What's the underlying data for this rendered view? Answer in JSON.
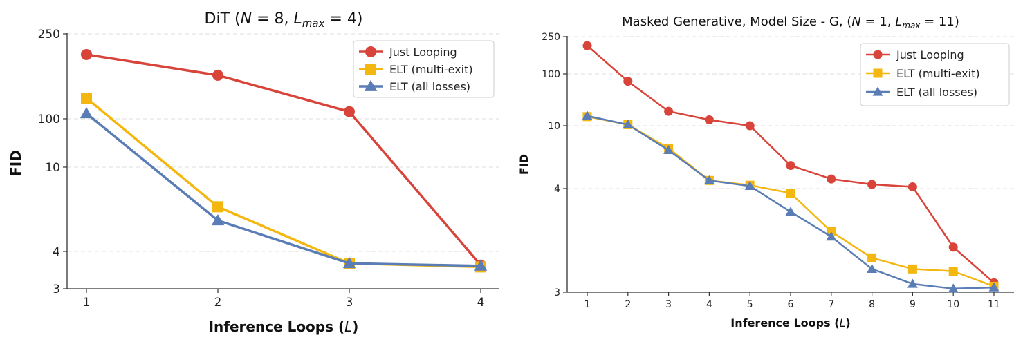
{
  "colors": {
    "just_looping": "#d9443a",
    "elt_multi_exit": "#f3b70f",
    "elt_all_losses": "#5a7db5",
    "grid": "#dddddd",
    "axis": "#333333"
  },
  "chart_data": [
    {
      "type": "line",
      "title_parts": {
        "prefix": "DiT (",
        "N": "N",
        "eq1": " = 8, ",
        "L": "L",
        "sub": "max",
        "eq2": " = 4)"
      },
      "xlabel_parts": {
        "text": "Inference Loops (",
        "var": "L",
        "close": ")"
      },
      "ylabel": "FID",
      "x": [
        1,
        2,
        3,
        4
      ],
      "yticks": [
        3,
        4,
        10,
        100,
        250
      ],
      "grid": "horizontal dashed",
      "legend_position": "top-right",
      "series": [
        {
          "name": "Just Looping",
          "marker": "circle",
          "values": [
            200,
            160,
            108,
            3.6
          ]
        },
        {
          "name": "ELT (multi-exit)",
          "marker": "square",
          "values": [
            125,
            6.5,
            3.65,
            3.55
          ]
        },
        {
          "name": "ELT (all losses)",
          "marker": "triangle",
          "values": [
            106,
            5.6,
            3.65,
            3.58
          ]
        }
      ]
    },
    {
      "type": "line",
      "title_parts": {
        "prefix": "Masked Generative, Model Size - G, (",
        "N": "N",
        "eq1": " = 1, ",
        "L": "L",
        "sub": "max",
        "eq2": " = 11)"
      },
      "xlabel_parts": {
        "text": "Inference Loops (",
        "var": "L",
        "close": ")"
      },
      "ylabel": "FID",
      "x": [
        1,
        2,
        3,
        4,
        5,
        6,
        7,
        8,
        9,
        10,
        11
      ],
      "yticks": [
        3,
        4,
        10,
        100,
        250
      ],
      "grid": "horizontal dashed",
      "legend_position": "top-right",
      "series": [
        {
          "name": "Just Looping",
          "marker": "circle",
          "values": [
            200,
            72,
            19,
            13,
            10,
            5.6,
            4.6,
            4.25,
            4.1,
            3.4,
            3.08
          ]
        },
        {
          "name": "ELT (multi-exit)",
          "marker": "square",
          "values": [
            15,
            10.5,
            7.2,
            4.5,
            4.2,
            3.95,
            3.55,
            3.3,
            3.2,
            3.18,
            3.05
          ]
        },
        {
          "name": "ELT (all losses)",
          "marker": "triangle",
          "values": [
            15.5,
            10.5,
            7.0,
            4.5,
            4.15,
            3.75,
            3.5,
            3.2,
            3.07,
            3.03,
            3.04
          ]
        }
      ]
    }
  ]
}
